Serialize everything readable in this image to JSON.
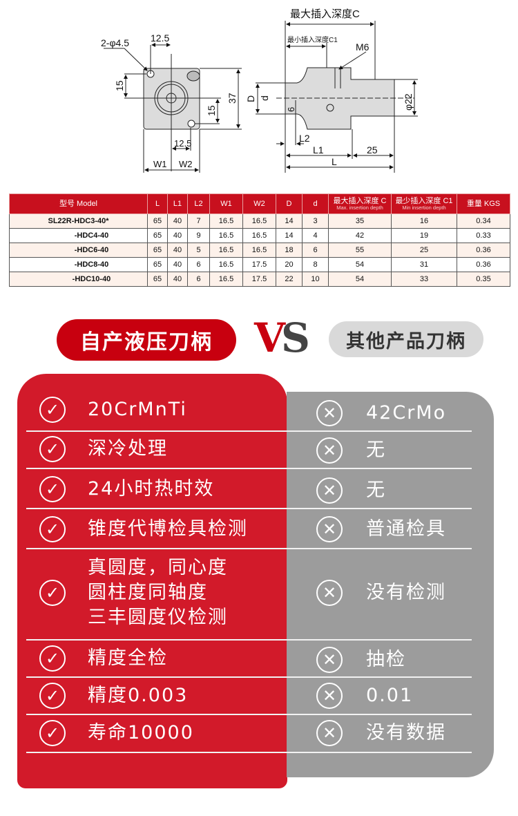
{
  "drawing": {
    "max_depth_c": "最大插入深度C",
    "min_depth_c1": "最小插入深度C1",
    "thread": "M6",
    "holes": "2-φ4.5",
    "dim_12_5_top": "12.5",
    "dim_12_5_bottom": "12.5",
    "dim_15_left": "15",
    "dim_15_right": "15",
    "dim_37": "37",
    "dim_D": "D",
    "dim_d": "d",
    "dim_6": "6",
    "dim_phi22": "φ22",
    "dim_L2": "L2",
    "dim_L1": "L1",
    "dim_25": "25",
    "dim_L": "L",
    "dim_W1": "W1",
    "dim_W2": "W2"
  },
  "spec_table": {
    "headers": {
      "model": "型号  Model",
      "L": "L",
      "L1": "L1",
      "L2": "L2",
      "W1": "W1",
      "W2": "W2",
      "D": "D",
      "d": "d",
      "c": "最大插入深度 C",
      "c_en": "Max. insertion depth",
      "c1": "最少插入深度 C1",
      "c1_en": "Min insertion depth",
      "weight": "重量 KGS"
    },
    "rows": [
      {
        "model": "SL22R-HDC3-40*",
        "L": "65",
        "L1": "40",
        "L2": "7",
        "W1": "16.5",
        "W2": "16.5",
        "D": "14",
        "d": "3",
        "C": "35",
        "C1": "16",
        "kgs": "0.34"
      },
      {
        "model": "-HDC4-40",
        "L": "65",
        "L1": "40",
        "L2": "9",
        "W1": "16.5",
        "W2": "16.5",
        "D": "14",
        "d": "4",
        "C": "42",
        "C1": "19",
        "kgs": "0.33"
      },
      {
        "model": "-HDC6-40",
        "L": "65",
        "L1": "40",
        "L2": "5",
        "W1": "16.5",
        "W2": "16.5",
        "D": "18",
        "d": "6",
        "C": "55",
        "C1": "25",
        "kgs": "0.36"
      },
      {
        "model": "-HDC8-40",
        "L": "65",
        "L1": "40",
        "L2": "6",
        "W1": "16.5",
        "W2": "17.5",
        "D": "20",
        "d": "8",
        "C": "54",
        "C1": "31",
        "kgs": "0.36"
      },
      {
        "model": "-HDC10-40",
        "L": "65",
        "L1": "40",
        "L2": "6",
        "W1": "16.5",
        "W2": "17.5",
        "D": "22",
        "d": "10",
        "C": "54",
        "C1": "33",
        "kgs": "0.35"
      }
    ]
  },
  "comparison": {
    "ours_title": "自产液压刀柄",
    "vs_v": "V",
    "vs_s": "S",
    "other_title": "其他产品刀柄",
    "colors": {
      "ours": "#d21a2a",
      "other": "#9c9c9c",
      "pill_red": "#c8000f"
    },
    "ours_icon": "check-circle-icon",
    "other_icon": "x-circle-icon",
    "rows": [
      {
        "ours": "20CrMnTi",
        "other": "42CrMo"
      },
      {
        "ours": "深冷处理",
        "other": "无"
      },
      {
        "ours": "24小时热时效",
        "other": "无"
      },
      {
        "ours": "锥度代博检具检测",
        "other": "普通检具"
      },
      {
        "ours": "真圆度，同心度\n圆柱度同轴度\n三丰圆度仪检测",
        "other": "没有检测"
      },
      {
        "ours": "精度全检",
        "other": "抽检"
      },
      {
        "ours": "精度0.003",
        "other": "0.01"
      },
      {
        "ours": "寿命10000",
        "other": "没有数据"
      }
    ]
  }
}
